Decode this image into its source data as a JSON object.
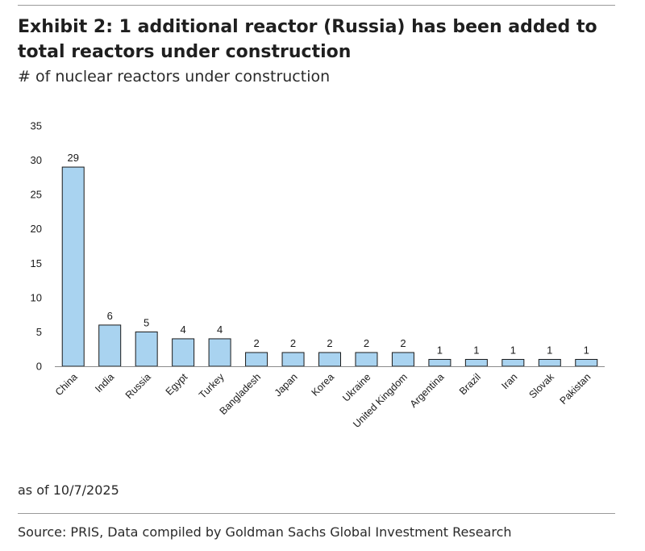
{
  "header": {
    "title": "Exhibit 2: 1 additional reactor (Russia) has been added to total reactors under construction",
    "subtitle": "# of nuclear reactors under construction"
  },
  "footer": {
    "as_of": "as of 10/7/2025",
    "source": "Source: PRIS, Data compiled by Goldman Sachs Global Investment Research"
  },
  "colors": {
    "bar_fill": "#a9d3f0",
    "bar_stroke": "#1a1a1a"
  },
  "chart_data": {
    "type": "bar",
    "title": "Exhibit 2: 1 additional reactor (Russia) has been added to total reactors under construction",
    "subtitle": "# of nuclear reactors under construction",
    "xlabel": "",
    "ylabel": "",
    "categories": [
      "China",
      "India",
      "Russia",
      "Egypt",
      "Turkey",
      "Bangladesh",
      "Japan",
      "Korea",
      "Ukraine",
      "United Kingdom",
      "Argentina",
      "Brazil",
      "Iran",
      "Slovak",
      "Pakistan"
    ],
    "values": [
      29,
      6,
      5,
      4,
      4,
      2,
      2,
      2,
      2,
      2,
      1,
      1,
      1,
      1,
      1
    ],
    "ylim": [
      0,
      35
    ],
    "yticks": [
      0,
      5,
      10,
      15,
      20,
      25,
      30,
      35
    ],
    "grid": false,
    "legend": "none",
    "data_labels": true
  }
}
